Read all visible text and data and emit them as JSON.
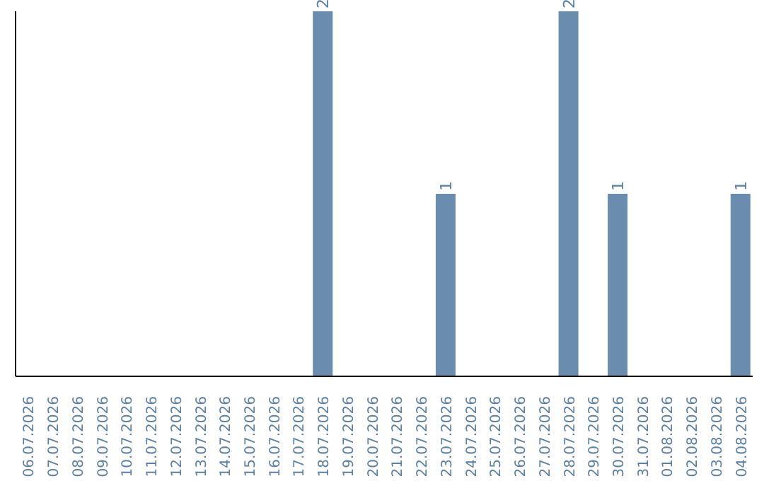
{
  "chart_data": {
    "type": "bar",
    "categories": [
      "06.07.2026",
      "07.07.2026",
      "08.07.2026",
      "09.07.2026",
      "10.07.2026",
      "11.07.2026",
      "12.07.2026",
      "13.07.2026",
      "14.07.2026",
      "15.07.2026",
      "16.07.2026",
      "17.07.2026",
      "18.07.2026",
      "19.07.2026",
      "20.07.2026",
      "21.07.2026",
      "22.07.2026",
      "23.07.2026",
      "24.07.2026",
      "25.07.2026",
      "26.07.2026",
      "27.07.2026",
      "28.07.2026",
      "29.07.2026",
      "30.07.2026",
      "31.07.2026",
      "01.08.2026",
      "02.08.2026",
      "03.08.2026",
      "04.08.2026"
    ],
    "values": [
      null,
      null,
      null,
      null,
      null,
      null,
      null,
      null,
      null,
      null,
      null,
      null,
      2,
      null,
      null,
      null,
      null,
      1,
      null,
      null,
      null,
      null,
      2,
      null,
      1,
      null,
      null,
      null,
      null,
      1
    ],
    "data_labels": true,
    "color": "#6a8caf",
    "ylim": [
      0,
      2
    ],
    "tick_labels": "x",
    "grid": false
  }
}
